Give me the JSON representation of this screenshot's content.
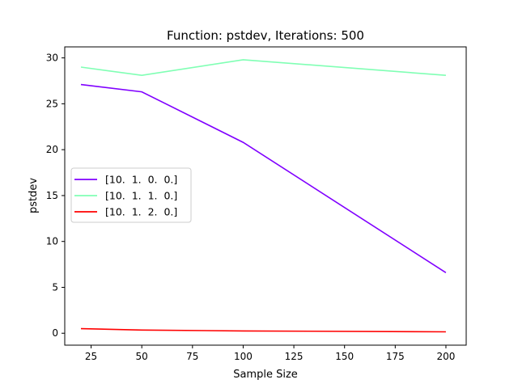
{
  "chart_data": {
    "type": "line",
    "title": "Function: pstdev, Iterations: 500",
    "xlabel": "Sample Size",
    "ylabel": "pstdev",
    "x": [
      20,
      50,
      100,
      200
    ],
    "xlim": [
      12,
      210
    ],
    "ylim": [
      -1.3,
      31.2
    ],
    "xticks": [
      25,
      50,
      75,
      100,
      125,
      150,
      175,
      200
    ],
    "yticks": [
      0,
      5,
      10,
      15,
      20,
      25,
      30
    ],
    "grid": false,
    "legend_position": "center-left",
    "series": [
      {
        "name": "[10.  1.  0.  0.]",
        "color": "#8000ff",
        "values": [
          27.1,
          26.3,
          20.8,
          6.6
        ]
      },
      {
        "name": "[10.  1.  1.  0.]",
        "color": "#80ffb4",
        "values": [
          29.0,
          28.1,
          29.8,
          28.1
        ]
      },
      {
        "name": "[10.  1.  2.  0.]",
        "color": "#ff0000",
        "values": [
          0.5,
          0.35,
          0.25,
          0.15
        ]
      }
    ]
  }
}
